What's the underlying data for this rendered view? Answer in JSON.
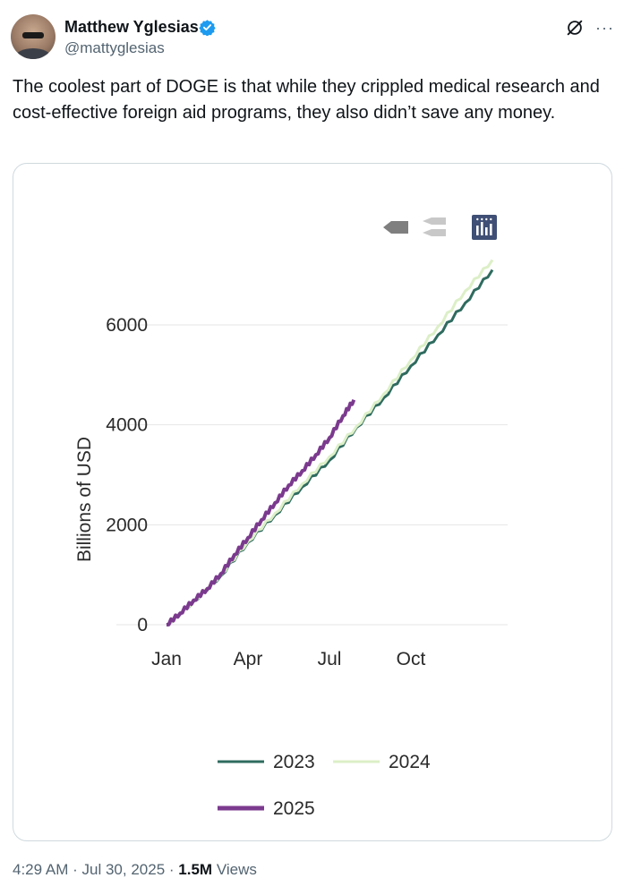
{
  "tweet": {
    "author_name": "Matthew Yglesias",
    "handle": "@mattyglesias",
    "text": "The coolest part of DOGE is that while they crippled medical research and cost-effective foreign aid programs, they also didn’t save any money.",
    "time": "4:29 AM",
    "date": "Jul 30, 2025",
    "views_count": "1.5M",
    "views_label": "Views",
    "separator": "·",
    "more_label": "···"
  },
  "colors": {
    "s2023": "#2f6b5f",
    "s2024": "#dcefc7",
    "s2025": "#7b3a8e",
    "verified": "#1d9bf0",
    "grid": "#e6e6e6"
  },
  "chart_data": {
    "type": "line",
    "ylabel": "Billions of USD",
    "xlabel": "",
    "x_ticks": [
      "Jan",
      "Apr",
      "Jul",
      "Oct"
    ],
    "x_tick_months": [
      0,
      3,
      6,
      9
    ],
    "y_ticks": [
      0,
      2000,
      4000,
      6000
    ],
    "ylim": [
      0,
      7400
    ],
    "xlim_months": [
      0,
      12
    ],
    "legend_position": "bottom",
    "series": [
      {
        "name": "2023",
        "color_key": "s2023",
        "points": [
          [
            0,
            0
          ],
          [
            1,
            470
          ],
          [
            2,
            980
          ],
          [
            3,
            1650
          ],
          [
            4,
            2200
          ],
          [
            5,
            2760
          ],
          [
            6,
            3290
          ],
          [
            7,
            3950
          ],
          [
            8,
            4540
          ],
          [
            9,
            5180
          ],
          [
            10,
            5800
          ],
          [
            11,
            6440
          ],
          [
            12,
            7100
          ]
        ]
      },
      {
        "name": "2024",
        "color_key": "s2024",
        "points": [
          [
            0,
            0
          ],
          [
            1,
            480
          ],
          [
            2,
            1000
          ],
          [
            3,
            1670
          ],
          [
            4,
            2230
          ],
          [
            5,
            2820
          ],
          [
            6,
            3360
          ],
          [
            7,
            3970
          ],
          [
            8,
            4620
          ],
          [
            9,
            5300
          ],
          [
            10,
            5970
          ],
          [
            11,
            6680
          ],
          [
            12,
            7300
          ]
        ]
      },
      {
        "name": "2025",
        "color_key": "s2025",
        "points": [
          [
            0,
            0
          ],
          [
            0.5,
            230
          ],
          [
            1,
            490
          ],
          [
            1.5,
            720
          ],
          [
            2,
            1020
          ],
          [
            2.5,
            1400
          ],
          [
            3,
            1740
          ],
          [
            3.5,
            2100
          ],
          [
            4,
            2440
          ],
          [
            4.5,
            2790
          ],
          [
            5,
            3080
          ],
          [
            5.5,
            3400
          ],
          [
            6,
            3740
          ],
          [
            6.5,
            4180
          ],
          [
            6.9,
            4500
          ]
        ]
      }
    ]
  }
}
